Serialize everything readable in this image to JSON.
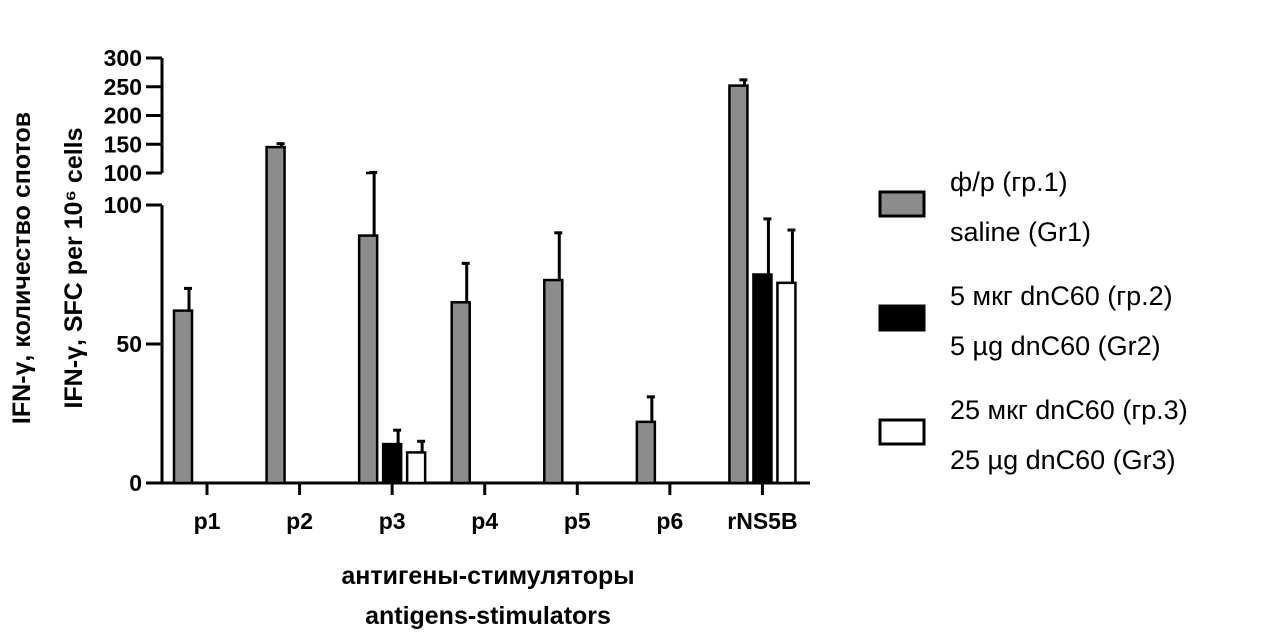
{
  "chart_data": {
    "type": "bar",
    "categories": [
      "p1",
      "p2",
      "p3",
      "p4",
      "p5",
      "p6",
      "rNS5B"
    ],
    "series": [
      {
        "name": "ф/р (гр.1)",
        "name_en": "saline (Gr1)",
        "color": "#8c8c8c",
        "values": [
          62,
          145,
          89,
          65,
          73,
          22,
          252
        ],
        "errors": [
          8,
          6,
          12,
          14,
          17,
          9,
          10
        ]
      },
      {
        "name": "5 мкг dnC60 (гр.2)",
        "name_en": "5 µg dnC60 (Gr2)",
        "color": "#000000",
        "values": [
          0,
          0,
          14,
          0,
          0,
          0,
          75
        ],
        "errors": [
          0,
          0,
          5,
          0,
          0,
          0,
          20
        ]
      },
      {
        "name": "25 мкг dnC60 (гр.3)",
        "name_en": "25 µg dnC60 (Gr3)",
        "color": "#ffffff",
        "values": [
          0,
          0,
          11,
          0,
          0,
          0,
          72
        ],
        "errors": [
          0,
          0,
          4,
          0,
          0,
          0,
          19
        ]
      }
    ],
    "y_axis": {
      "broken": true,
      "lower_range": [
        0,
        100
      ],
      "upper_range": [
        100,
        300
      ],
      "lower_ticks": [
        "0",
        "50",
        "100"
      ],
      "upper_ticks": [
        "100",
        "150",
        "200",
        "250",
        "300"
      ]
    },
    "ylabel": [
      "IFN-γ, количество спотов",
      "IFN-γ, SFC per 10⁶ cells"
    ],
    "xlabel": [
      "антигены-стимуляторы",
      "antigens-stimulators"
    ],
    "legend": "right"
  }
}
